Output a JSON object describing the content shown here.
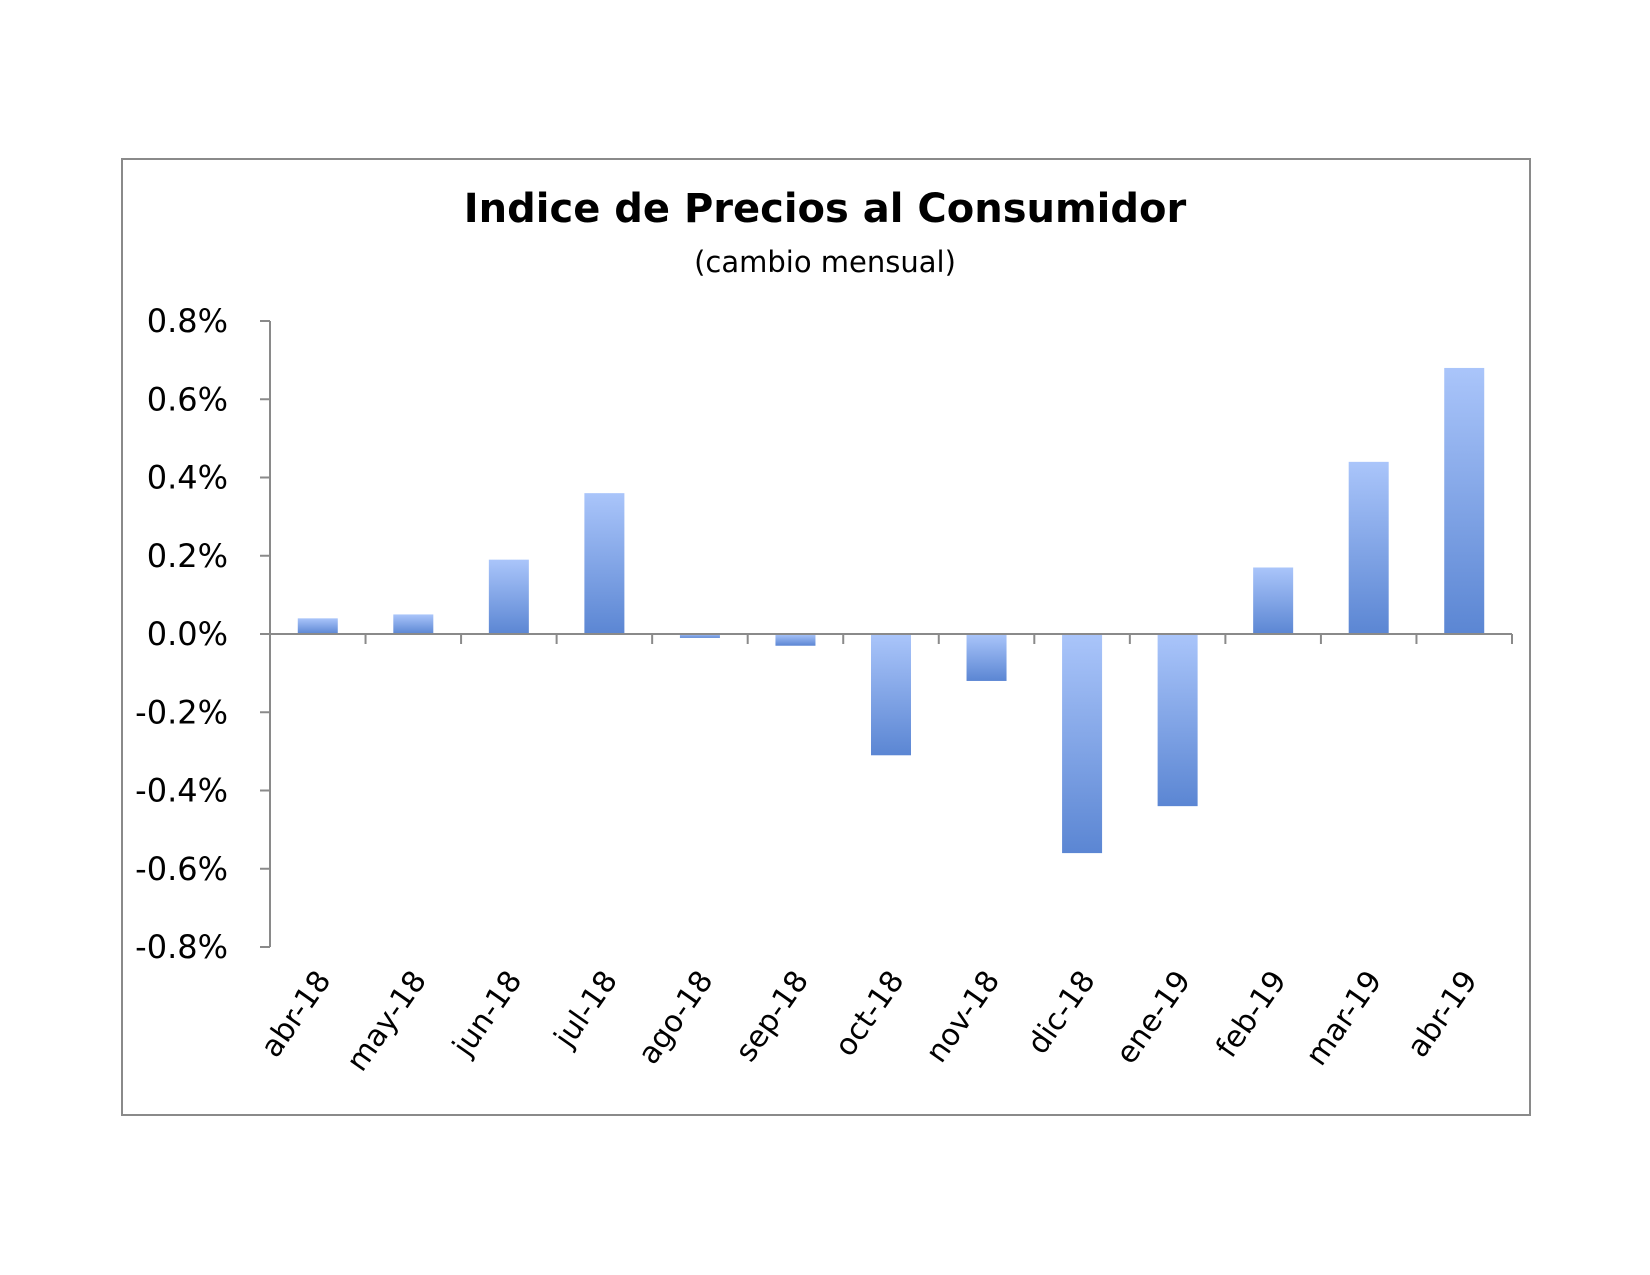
{
  "chart_data": {
    "type": "bar",
    "title": "Indice de Precios al Consumidor",
    "subtitle": "(cambio mensual)",
    "xlabel": "",
    "ylabel": "",
    "categories": [
      "abr-18",
      "may-18",
      "jun-18",
      "jul-18",
      "ago-18",
      "sep-18",
      "oct-18",
      "nov-18",
      "dic-18",
      "ene-19",
      "feb-19",
      "mar-19",
      "abr-19"
    ],
    "values": [
      0.04,
      0.05,
      0.19,
      0.36,
      -0.01,
      -0.03,
      -0.31,
      -0.12,
      -0.56,
      -0.44,
      0.17,
      0.44,
      0.68
    ],
    "unit": "%",
    "ylim": [
      -0.8,
      0.8
    ],
    "yticks": [
      0.8,
      0.6,
      0.4,
      0.2,
      0.0,
      -0.2,
      -0.4,
      -0.6,
      -0.8
    ],
    "ytick_labels": [
      "0.8%",
      "0.6%",
      "0.4%",
      "0.2%",
      "0.0%",
      "-0.2%",
      "-0.4%",
      "-0.6%",
      "-0.8%"
    ],
    "grid": false,
    "legend": "none",
    "colors": {
      "bar_light": "#aac5fa",
      "bar_dark": "#5b86d3",
      "axis": "#8a8a8a"
    }
  }
}
